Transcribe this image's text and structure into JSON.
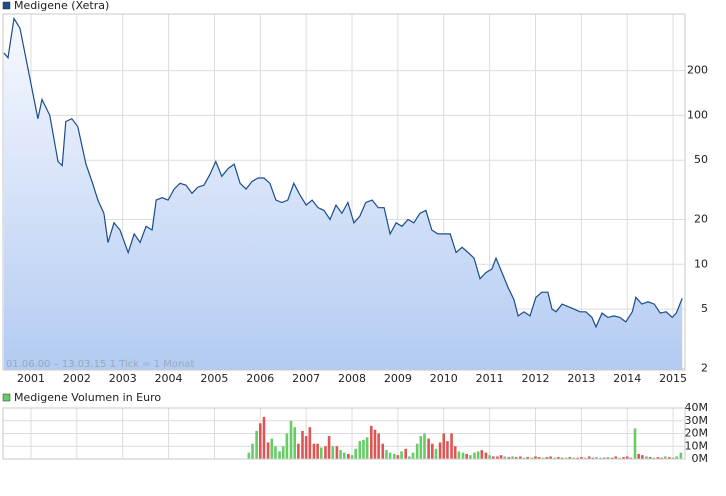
{
  "chart_data": [
    {
      "type": "line",
      "log_scale": true,
      "grid": true,
      "annotation": "01.06.00 – 13.03.15    1 Tick = 1 Monat",
      "xlim": [
        2000.39,
        2015.26
      ],
      "xticks": [
        2001,
        2002,
        2003,
        2004,
        2005,
        2006,
        2007,
        2008,
        2009,
        2010,
        2011,
        2012,
        2013,
        2014,
        2015
      ],
      "ylim": [
        1.95,
        480
      ],
      "yticks": [
        2,
        5,
        10,
        20,
        50,
        100,
        200
      ],
      "x": [
        2000.41,
        2000.5,
        2000.63,
        2000.76,
        2000.93,
        2001.15,
        2001.24,
        2001.41,
        2001.59,
        2001.68,
        2001.76,
        2001.89,
        2002.02,
        2002.2,
        2002.33,
        2002.46,
        2002.59,
        2002.68,
        2002.81,
        2002.94,
        2003.12,
        2003.25,
        2003.38,
        2003.51,
        2003.64,
        2003.73,
        2003.86,
        2003.99,
        2004.12,
        2004.25,
        2004.38,
        2004.51,
        2004.64,
        2004.77,
        2004.9,
        2005.03,
        2005.16,
        2005.3,
        2005.43,
        2005.56,
        2005.69,
        2005.82,
        2005.95,
        2006.08,
        2006.21,
        2006.34,
        2006.47,
        2006.6,
        2006.73,
        2006.87,
        2007.0,
        2007.13,
        2007.26,
        2007.39,
        2007.52,
        2007.65,
        2007.78,
        2007.91,
        2008.04,
        2008.17,
        2008.3,
        2008.44,
        2008.57,
        2008.7,
        2008.83,
        2008.96,
        2009.09,
        2009.22,
        2009.35,
        2009.48,
        2009.61,
        2009.74,
        2009.87,
        2010.01,
        2010.14,
        2010.27,
        2010.4,
        2010.53,
        2010.66,
        2010.79,
        2010.92,
        2011.05,
        2011.14,
        2011.27,
        2011.4,
        2011.53,
        2011.62,
        2011.75,
        2011.88,
        2012.01,
        2012.14,
        2012.27,
        2012.36,
        2012.45,
        2012.58,
        2012.71,
        2012.84,
        2012.97,
        2013.1,
        2013.23,
        2013.32,
        2013.45,
        2013.58,
        2013.71,
        2013.84,
        2013.97,
        2014.11,
        2014.19,
        2014.32,
        2014.45,
        2014.59,
        2014.72,
        2014.85,
        2014.98,
        2015.07,
        2015.2
      ],
      "series": [
        {
          "name": "Medigene (Xetra)",
          "color": "#1b4c8c",
          "values": [
            263,
            244,
            448,
            385,
            209,
            95,
            128,
            100,
            49,
            46,
            91,
            95,
            84,
            47,
            36,
            27,
            22,
            14,
            19,
            17,
            12,
            16,
            14,
            18,
            17,
            27,
            28,
            27,
            32,
            35,
            34,
            30,
            33,
            34,
            40,
            49,
            39,
            44,
            47,
            35,
            32,
            36,
            38,
            38,
            35,
            27,
            26,
            27,
            35,
            29,
            25,
            27,
            24,
            23,
            20,
            25,
            22,
            26,
            19,
            21,
            26,
            27,
            24,
            24,
            16,
            19,
            18,
            20,
            19,
            22,
            23,
            17,
            16,
            16,
            16,
            12,
            13,
            12,
            11,
            8,
            8.8,
            9.3,
            11,
            8.8,
            7,
            5.8,
            4.5,
            4.8,
            4.5,
            6,
            6.5,
            6.5,
            5,
            4.8,
            5.4,
            5.2,
            5,
            4.8,
            4.8,
            4.4,
            3.8,
            4.7,
            4.4,
            4.5,
            4.4,
            4.1,
            4.8,
            6,
            5.4,
            5.6,
            5.4,
            4.7,
            4.8,
            4.4,
            4.7,
            5.9
          ]
        }
      ]
    },
    {
      "type": "bar",
      "grid": true,
      "xlim": [
        2000.39,
        2015.26
      ],
      "ylim": [
        0,
        40
      ],
      "yticks": [
        {
          "value": 0,
          "label": "0M"
        },
        {
          "value": 10,
          "label": "10M"
        },
        {
          "value": 20,
          "label": "20M"
        },
        {
          "value": 30,
          "label": "30M"
        },
        {
          "value": 40,
          "label": "40M"
        }
      ],
      "x": [
        2005.75,
        2005.83,
        2005.92,
        2006.0,
        2006.08,
        2006.17,
        2006.25,
        2006.33,
        2006.42,
        2006.5,
        2006.58,
        2006.67,
        2006.75,
        2006.83,
        2006.92,
        2007.0,
        2007.08,
        2007.17,
        2007.25,
        2007.33,
        2007.42,
        2007.5,
        2007.58,
        2007.67,
        2007.75,
        2007.83,
        2007.92,
        2008.0,
        2008.08,
        2008.17,
        2008.25,
        2008.33,
        2008.42,
        2008.5,
        2008.58,
        2008.67,
        2008.75,
        2008.83,
        2008.92,
        2009.0,
        2009.08,
        2009.17,
        2009.25,
        2009.33,
        2009.42,
        2009.5,
        2009.58,
        2009.67,
        2009.75,
        2009.83,
        2009.92,
        2010.0,
        2010.08,
        2010.17,
        2010.25,
        2010.33,
        2010.42,
        2010.5,
        2010.58,
        2010.67,
        2010.75,
        2010.83,
        2010.92,
        2011.0,
        2011.08,
        2011.17,
        2011.25,
        2011.33,
        2011.42,
        2011.5,
        2011.58,
        2011.67,
        2011.75,
        2011.83,
        2011.92,
        2012.0,
        2012.08,
        2012.17,
        2012.25,
        2012.33,
        2012.42,
        2012.5,
        2012.58,
        2012.67,
        2012.75,
        2012.83,
        2012.92,
        2013.0,
        2013.08,
        2013.17,
        2013.25,
        2013.33,
        2013.42,
        2013.5,
        2013.58,
        2013.67,
        2013.75,
        2013.83,
        2013.92,
        2014.0,
        2014.08,
        2014.17,
        2014.25,
        2014.33,
        2014.42,
        2014.5,
        2014.58,
        2014.67,
        2014.75,
        2014.83,
        2014.92,
        2015.0,
        2015.08,
        2015.17
      ],
      "series": [
        {
          "name": "Medigene Volumen in Euro",
          "color": "#66cc66",
          "values": [
            5,
            12,
            22,
            28,
            33,
            13,
            16,
            10,
            6,
            10,
            20,
            30,
            25,
            12,
            22,
            18,
            25,
            12,
            12,
            9,
            10,
            18,
            10,
            10,
            7,
            5,
            4,
            3,
            8,
            14,
            15,
            17,
            26,
            23,
            20,
            12,
            7,
            5,
            4,
            3,
            6,
            8,
            2,
            5,
            12,
            18,
            20,
            16,
            12,
            8,
            13,
            20,
            14,
            20,
            10,
            6,
            5,
            4,
            3,
            5,
            6,
            7,
            5,
            3,
            2,
            2,
            3,
            2,
            1.5,
            2,
            1.5,
            2,
            1,
            1.5,
            1,
            2,
            1.5,
            1,
            1.5,
            2,
            1,
            1.5,
            1,
            1,
            1.5,
            1,
            1,
            1.5,
            1,
            2,
            1,
            1.5,
            1,
            1,
            1.5,
            1,
            2,
            1,
            1.5,
            2,
            1,
            24,
            4,
            3,
            2,
            1.5,
            1,
            1.5,
            1,
            2,
            1.5,
            1,
            2,
            5
          ]
        }
      ],
      "colors": [
        "#66cc66",
        "#66cc66",
        "#66cc66",
        "#dd5555",
        "#dd5555",
        "#dd5555",
        "#66cc66",
        "#66cc66",
        "#66cc66",
        "#66cc66",
        "#66cc66",
        "#66cc66",
        "#66cc66",
        "#dd5555",
        "#dd5555",
        "#dd5555",
        "#dd5555",
        "#dd5555",
        "#dd5555",
        "#66cc66",
        "#dd5555",
        "#dd5555",
        "#66cc66",
        "#dd5555",
        "#66cc66",
        "#66cc66",
        "#dd5555",
        "#66cc66",
        "#66cc66",
        "#66cc66",
        "#66cc66",
        "#66cc66",
        "#dd5555",
        "#dd5555",
        "#dd5555",
        "#dd5555",
        "#66cc66",
        "#66cc66",
        "#66cc66",
        "#dd5555",
        "#66cc66",
        "#dd5555",
        "#66cc66",
        "#66cc66",
        "#66cc66",
        "#66cc66",
        "#66cc66",
        "#dd5555",
        "#dd5555",
        "#66cc66",
        "#dd5555",
        "#dd5555",
        "#dd5555",
        "#dd5555",
        "#dd5555",
        "#66cc66",
        "#66cc66",
        "#dd5555",
        "#66cc66",
        "#66cc66",
        "#66cc66",
        "#dd5555",
        "#dd5555",
        "#66cc66",
        "#dd5555",
        "#dd5555",
        "#dd5555",
        "#66cc66",
        "#dd5555",
        "#66cc66",
        "#dd5555",
        "#dd5555",
        "#66cc66",
        "#dd5555",
        "#66cc66",
        "#dd5555",
        "#dd5555",
        "#66cc66",
        "#dd5555",
        "#dd5555",
        "#66cc66",
        "#dd5555",
        "#dd5555",
        "#66cc66",
        "#dd5555",
        "#66cc66",
        "#dd5555",
        "#dd5555",
        "#66cc66",
        "#dd5555",
        "#dd5555",
        "#66cc66",
        "#66cc66",
        "#dd5555",
        "#66cc66",
        "#dd5555",
        "#dd5555",
        "#66cc66",
        "#dd5555",
        "#dd5555",
        "#dd5555",
        "#66cc66",
        "#dd5555",
        "#dd5555",
        "#66cc66",
        "#dd5555",
        "#66cc66",
        "#dd5555",
        "#dd5555",
        "#66cc66",
        "#dd5555",
        "#66cc66",
        "#66cc66",
        "#66cc66"
      ]
    }
  ]
}
